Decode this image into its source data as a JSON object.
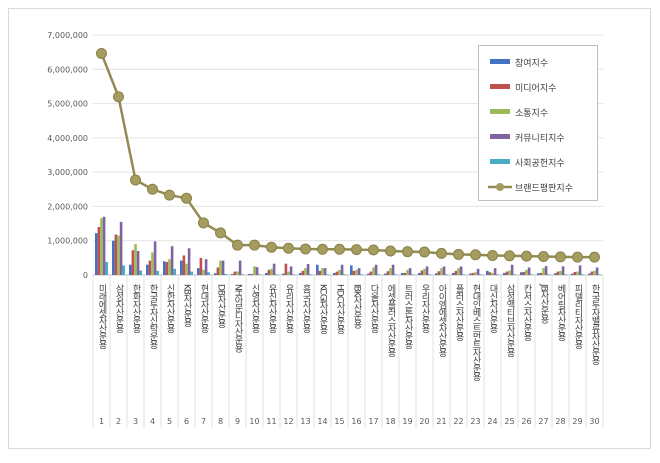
{
  "chart_data": {
    "type": "bar",
    "title": "",
    "xlabel": "",
    "ylabel": "",
    "ylim": [
      0,
      7000000
    ],
    "yticks": [
      "0",
      "1,000,000",
      "2,000,000",
      "3,000,000",
      "4,000,000",
      "5,000,000",
      "6,000,000",
      "7,000,000"
    ],
    "grid": true,
    "legend_position": "right",
    "ranks": [
      "1",
      "2",
      "3",
      "4",
      "5",
      "6",
      "7",
      "8",
      "9",
      "10",
      "11",
      "12",
      "13",
      "14",
      "15",
      "16",
      "17",
      "18",
      "19",
      "20",
      "21",
      "22",
      "23",
      "24",
      "25",
      "26",
      "27",
      "28",
      "29",
      "30"
    ],
    "categories": [
      "미래에셋자산운용",
      "삼성자산운용",
      "한화자산운용",
      "한국투자신탁운용",
      "신한자산운용",
      "KB자산운용",
      "현대자산운용",
      "DB자산운용",
      "NH아문디자산운용",
      "신영자산운용",
      "유진자산운용",
      "유리자산운용",
      "흥국자산운용",
      "KCGI자산운용",
      "HDC자산운용",
      "IBK자산운용",
      "다올자산운용",
      "에셋플러스자산운용",
      "트러스톤자산운용",
      "우리자산운용",
      "아이엠에셋자산운용",
      "플러스자산운용",
      "현대인베스트먼트자산운용",
      "대신자산운용",
      "삼성액티브자산운용",
      "칸서스자산운용",
      "JB자산운용",
      "베어링자산운용",
      "피델리티자산운용",
      "한국투자밸류자산운용"
    ],
    "series": [
      {
        "name": "참여지수",
        "type": "bar",
        "color": "#4472C4",
        "values": [
          1220000,
          1000000,
          300000,
          300000,
          400000,
          420000,
          200000,
          50000,
          30000,
          30000,
          60000,
          40000,
          60000,
          300000,
          60000,
          280000,
          40000,
          40000,
          60000,
          60000,
          50000,
          60000,
          40000,
          120000,
          60000,
          80000,
          50000,
          50000,
          40000,
          40000
        ]
      },
      {
        "name": "미디어지수",
        "type": "bar",
        "color": "#C0504D",
        "values": [
          1400000,
          1180000,
          720000,
          420000,
          380000,
          570000,
          500000,
          220000,
          100000,
          30000,
          150000,
          330000,
          120000,
          120000,
          100000,
          120000,
          100000,
          110000,
          60000,
          130000,
          110000,
          120000,
          60000,
          80000,
          100000,
          90000,
          60000,
          100000,
          90000,
          100000
        ]
      },
      {
        "name": "소통지수",
        "type": "bar",
        "color": "#9BBB59",
        "values": [
          1660000,
          1150000,
          900000,
          660000,
          460000,
          330000,
          150000,
          420000,
          100000,
          250000,
          180000,
          100000,
          200000,
          200000,
          150000,
          150000,
          220000,
          200000,
          150000,
          180000,
          200000,
          200000,
          80000,
          60000,
          130000,
          150000,
          200000,
          120000,
          100000,
          120000
        ]
      },
      {
        "name": "커뮤니티지수",
        "type": "bar",
        "color": "#8064A2",
        "values": [
          1700000,
          1550000,
          700000,
          980000,
          840000,
          780000,
          460000,
          420000,
          420000,
          230000,
          330000,
          250000,
          320000,
          200000,
          300000,
          200000,
          300000,
          300000,
          200000,
          250000,
          250000,
          250000,
          180000,
          200000,
          300000,
          220000,
          260000,
          250000,
          280000,
          220000
        ]
      },
      {
        "name": "사회공헌지수",
        "type": "bar",
        "color": "#4BACC6",
        "values": [
          380000,
          280000,
          130000,
          120000,
          180000,
          100000,
          80000,
          30000,
          20000,
          20000,
          20000,
          20000,
          20000,
          20000,
          20000,
          20000,
          20000,
          20000,
          20000,
          20000,
          20000,
          20000,
          20000,
          20000,
          20000,
          20000,
          20000,
          20000,
          20000,
          20000
        ]
      },
      {
        "name": "브랜드평판지수",
        "type": "line",
        "color": "#948A54",
        "values": [
          6460000,
          5200000,
          2770000,
          2500000,
          2330000,
          2240000,
          1520000,
          1230000,
          870000,
          870000,
          810000,
          780000,
          760000,
          750000,
          750000,
          740000,
          730000,
          700000,
          680000,
          670000,
          630000,
          600000,
          590000,
          570000,
          560000,
          550000,
          540000,
          530000,
          520000,
          520000
        ]
      }
    ]
  }
}
